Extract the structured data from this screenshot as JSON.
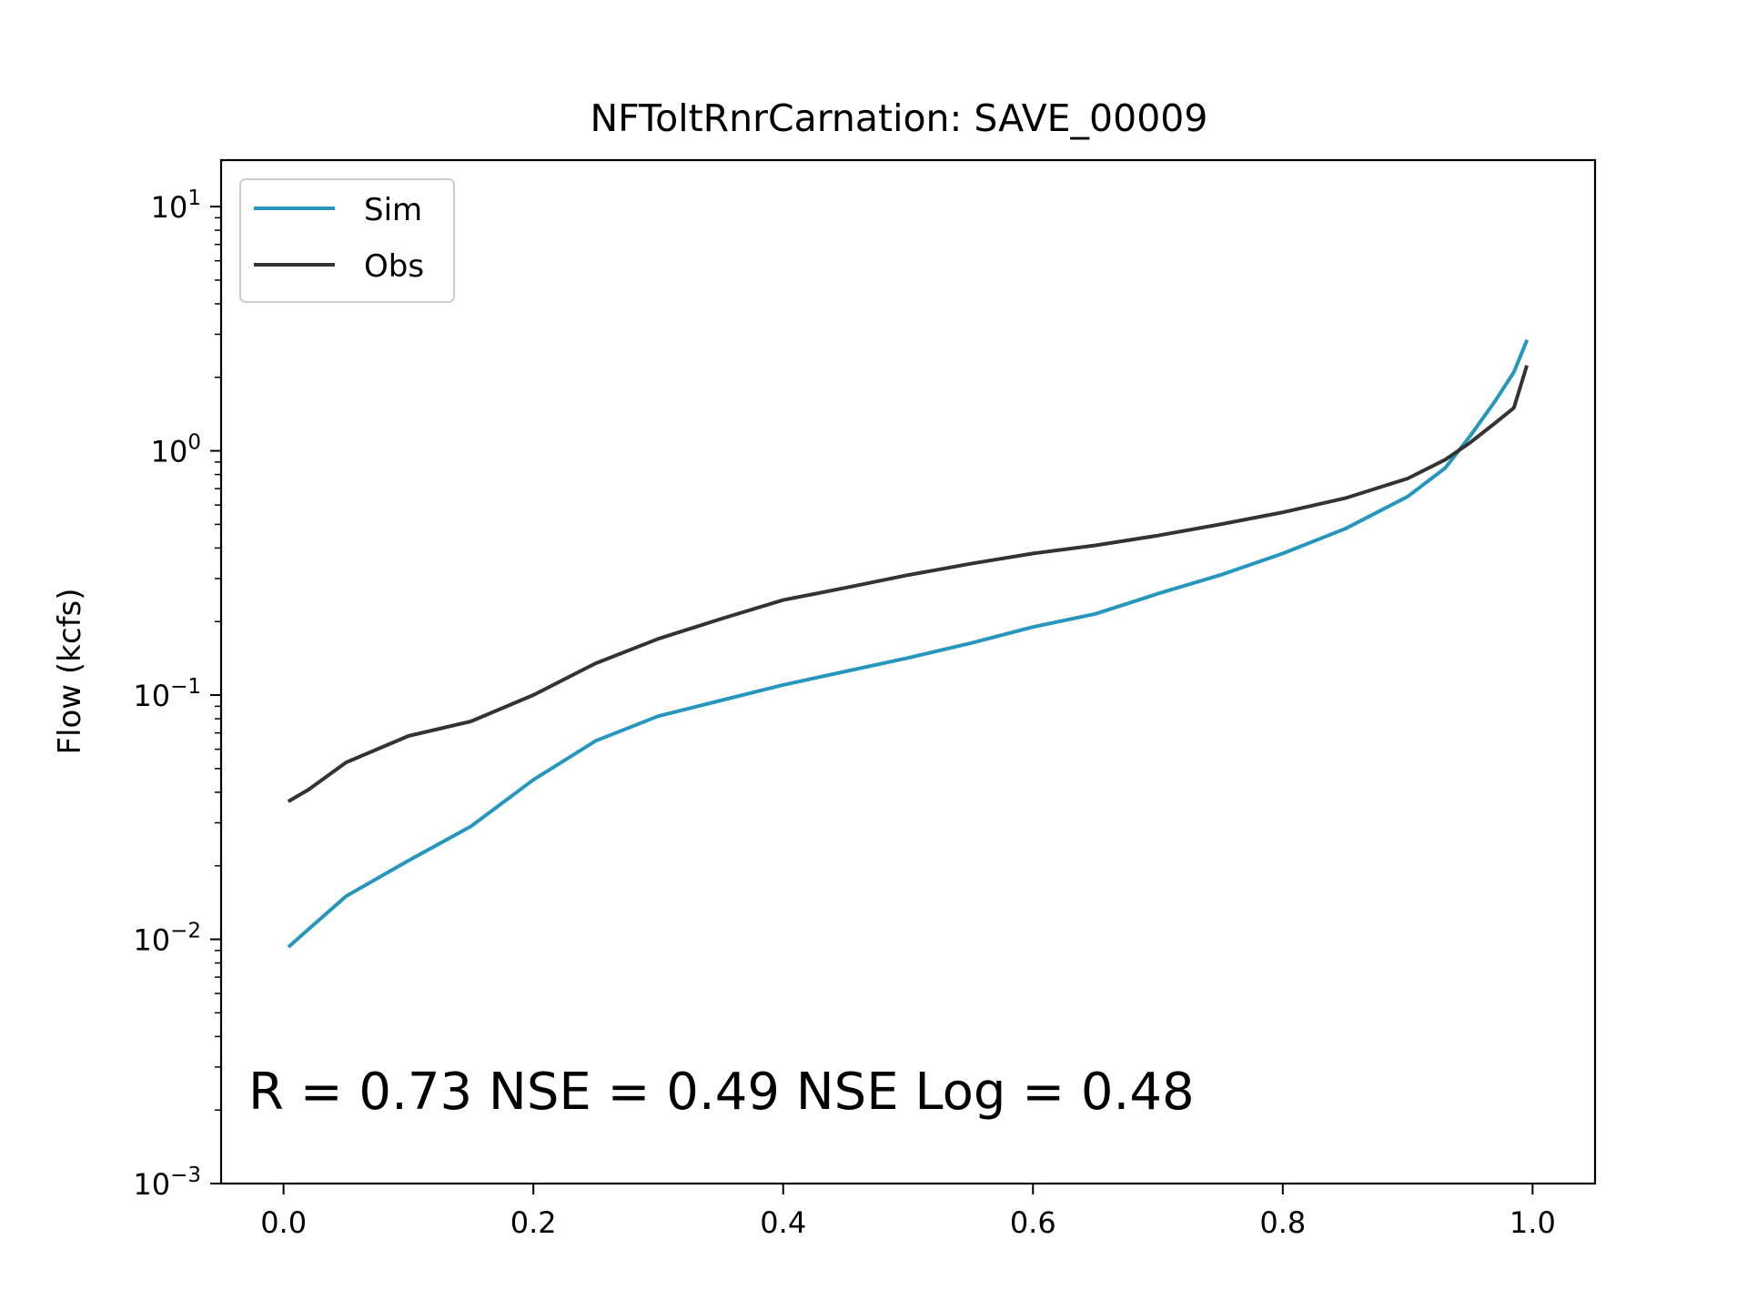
{
  "chart_data": {
    "type": "line",
    "title": "NFToltRnrCarnation: SAVE_00009",
    "xlabel": "",
    "ylabel": "Flow (kcfs)",
    "y_scale": "log",
    "xlim": [
      -0.05,
      1.05
    ],
    "ylim": [
      0.001,
      15.5
    ],
    "grid": false,
    "legend_position": "top-left",
    "x_ticks": [
      0.0,
      0.2,
      0.4,
      0.6,
      0.8,
      1.0
    ],
    "x_tick_labels": [
      "0.0",
      "0.2",
      "0.4",
      "0.6",
      "0.8",
      "1.0"
    ],
    "y_tick_labels": [
      {
        "base": "10",
        "exp": "−3",
        "value": 0.001
      },
      {
        "base": "10",
        "exp": "−2",
        "value": 0.01
      },
      {
        "base": "10",
        "exp": "−1",
        "value": 0.1
      },
      {
        "base": "10",
        "exp": "0",
        "value": 1
      },
      {
        "base": "10",
        "exp": "1",
        "value": 10
      }
    ],
    "annotation": "R = 0.73  NSE = 0.49  NSE Log = 0.48",
    "series": [
      {
        "name": "Sim",
        "color": "#2596be",
        "x": [
          0.005,
          0.02,
          0.05,
          0.1,
          0.15,
          0.2,
          0.25,
          0.3,
          0.35,
          0.4,
          0.45,
          0.5,
          0.55,
          0.6,
          0.65,
          0.7,
          0.75,
          0.8,
          0.85,
          0.9,
          0.93,
          0.95,
          0.97,
          0.985,
          0.995
        ],
        "y": [
          0.0094,
          0.011,
          0.015,
          0.021,
          0.029,
          0.045,
          0.065,
          0.082,
          0.095,
          0.11,
          0.125,
          0.142,
          0.163,
          0.19,
          0.215,
          0.26,
          0.31,
          0.38,
          0.48,
          0.65,
          0.85,
          1.15,
          1.6,
          2.1,
          2.8
        ]
      },
      {
        "name": "Obs",
        "color": "#333333",
        "x": [
          0.005,
          0.02,
          0.05,
          0.1,
          0.15,
          0.2,
          0.25,
          0.3,
          0.35,
          0.4,
          0.45,
          0.5,
          0.55,
          0.6,
          0.65,
          0.7,
          0.75,
          0.8,
          0.85,
          0.9,
          0.93,
          0.95,
          0.97,
          0.985,
          0.995
        ],
        "y": [
          0.037,
          0.041,
          0.053,
          0.068,
          0.078,
          0.1,
          0.135,
          0.17,
          0.205,
          0.245,
          0.275,
          0.31,
          0.345,
          0.38,
          0.41,
          0.45,
          0.5,
          0.56,
          0.64,
          0.77,
          0.92,
          1.08,
          1.3,
          1.5,
          2.2
        ]
      }
    ]
  }
}
